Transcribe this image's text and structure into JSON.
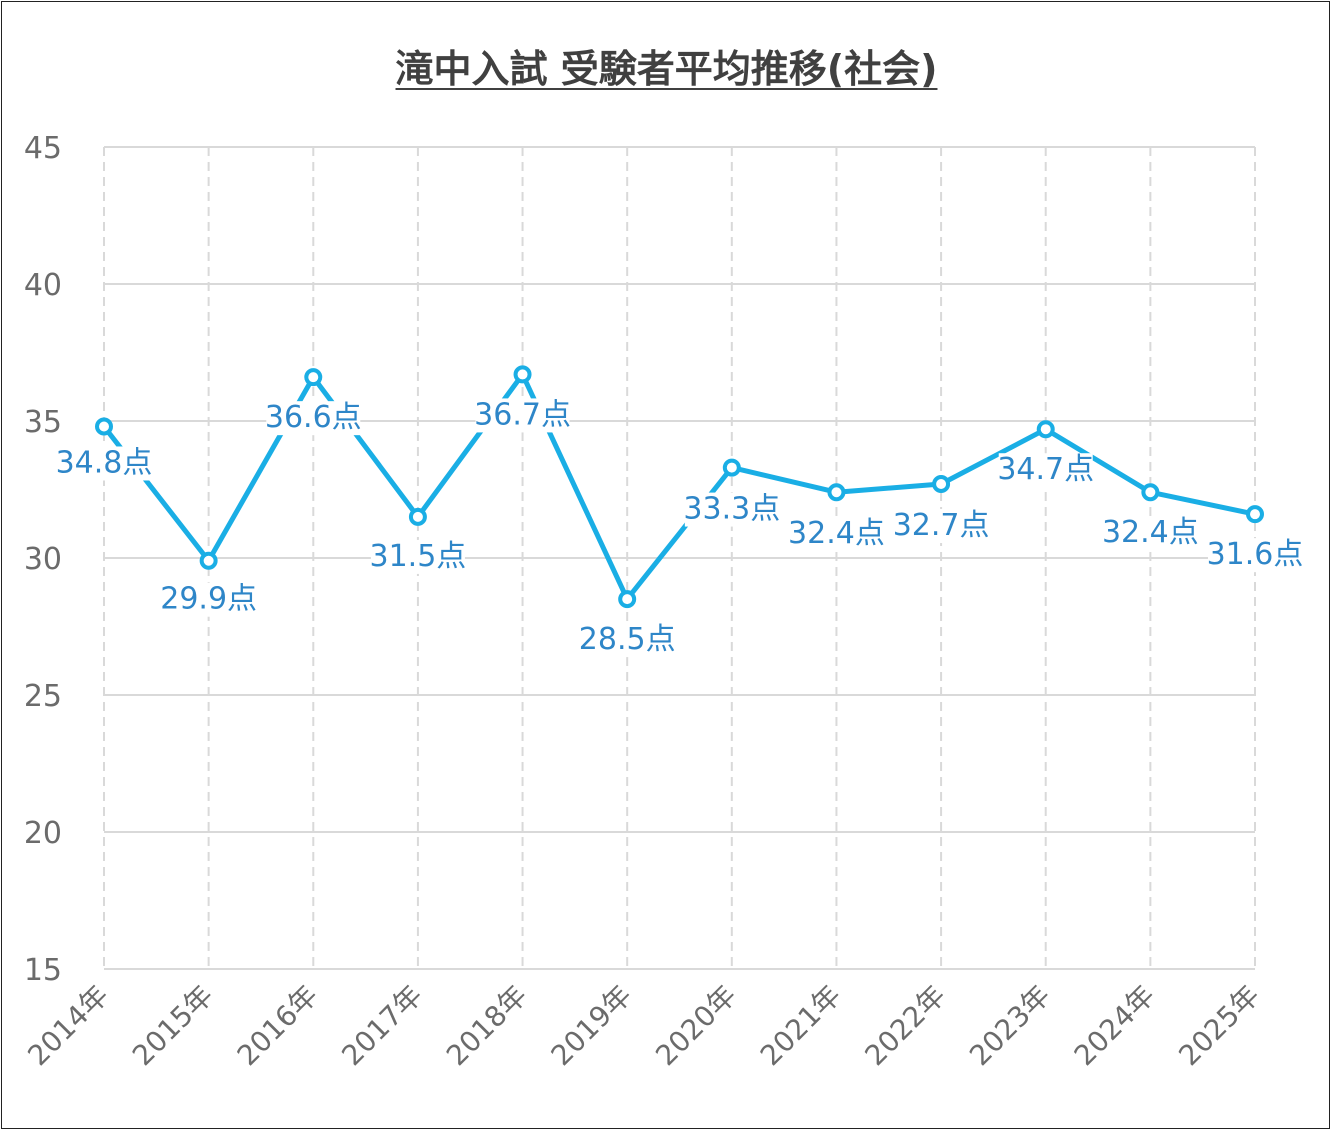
{
  "chart_data": {
    "type": "line",
    "title": "滝中入試 受験者平均推移(社会)",
    "xlabel": "",
    "ylabel": "",
    "categories": [
      "2014年",
      "2015年",
      "2016年",
      "2017年",
      "2018年",
      "2019年",
      "2020年",
      "2021年",
      "2022年",
      "2023年",
      "2024年",
      "2025年"
    ],
    "series": [
      {
        "values": [
          34.8,
          29.9,
          36.6,
          31.5,
          36.7,
          28.5,
          33.3,
          32.4,
          32.7,
          34.7,
          32.4,
          31.6
        ],
        "labels": [
          "34.8点",
          "29.9点",
          "36.6点",
          "31.5点",
          "36.7点",
          "28.5点",
          "33.3点",
          "32.4点",
          "32.7点",
          "34.7点",
          "32.4点",
          "31.6点"
        ],
        "color": "#1aaee5"
      }
    ],
    "ylim": [
      15,
      45
    ],
    "yticks": [
      "15",
      "20",
      "25",
      "30",
      "35",
      "40",
      "45"
    ],
    "grid": true,
    "gridline_color": "#d9d9d9",
    "label_color": "#2e86c8",
    "legend": "none"
  }
}
